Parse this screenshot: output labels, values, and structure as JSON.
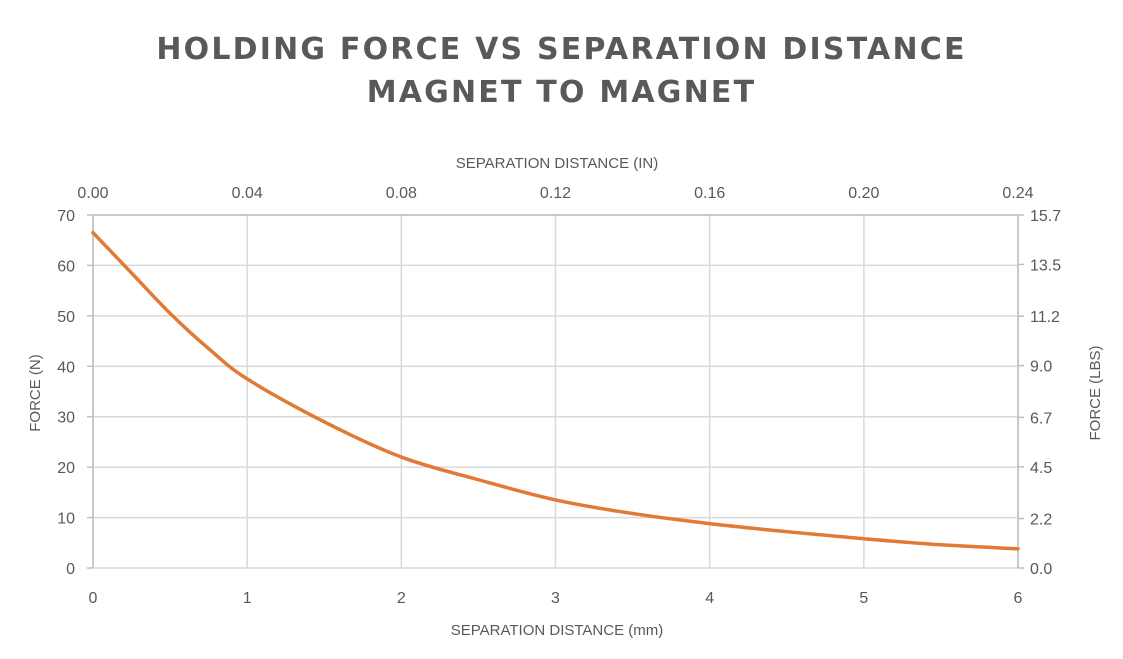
{
  "chart_data": {
    "type": "line",
    "title": [
      "HOLDING FORCE VS SEPARATION DISTANCE",
      "MAGNET TO MAGNET"
    ],
    "xlabel": "SEPARATION DISTANCE (mm)",
    "ylabel": "FORCE (N)",
    "x2label": "SEPARATION DISTANCE (IN)",
    "y2label": "FORCE (LBS)",
    "xlim": [
      0,
      6
    ],
    "ylim": [
      0,
      70
    ],
    "x2lim": [
      0,
      0.24
    ],
    "y2lim": [
      0,
      15.7
    ],
    "x_ticks": [
      "0",
      "1",
      "2",
      "3",
      "4",
      "5",
      "6"
    ],
    "y_ticks": [
      "0",
      "10",
      "20",
      "30",
      "40",
      "50",
      "60",
      "70"
    ],
    "x2_ticks": [
      "0.00",
      "0.04",
      "0.08",
      "0.12",
      "0.16",
      "0.20",
      "0.24"
    ],
    "y2_ticks": [
      "0.0",
      "2.2",
      "4.5",
      "6.7",
      "9.0",
      "11.2",
      "13.5",
      "15.7"
    ],
    "grid": true,
    "line_color": "#E07A35",
    "series": [
      {
        "x": [
          0,
          0.25,
          0.5,
          0.75,
          1,
          1.5,
          2,
          2.5,
          3,
          3.5,
          4,
          4.5,
          5,
          5.5,
          6
        ],
        "values": [
          66.5,
          58.5,
          50.5,
          43.5,
          37.5,
          29.0,
          22.0,
          17.5,
          13.5,
          10.8,
          8.8,
          7.2,
          5.8,
          4.6,
          3.8
        ]
      }
    ]
  }
}
